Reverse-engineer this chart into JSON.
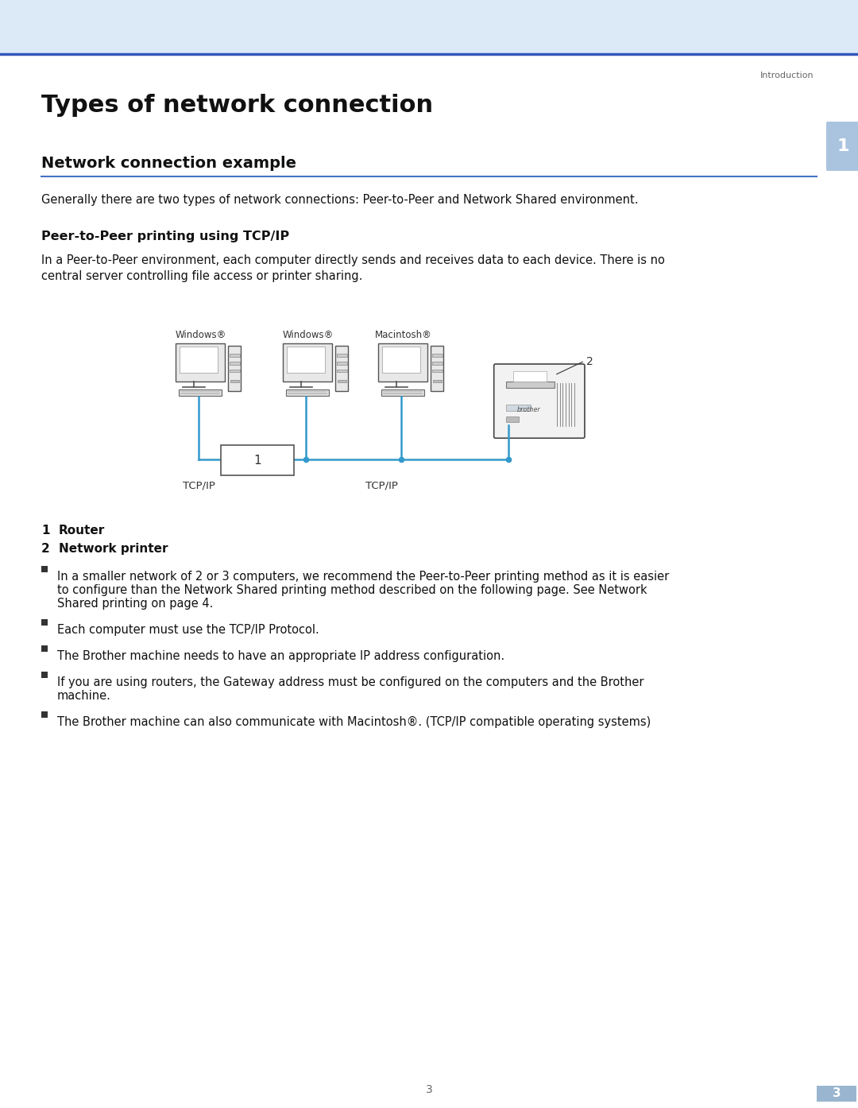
{
  "bg_color": "#ffffff",
  "header_bg_color": "#dce9f7",
  "header_line_color": "#3355bb",
  "page_title": "Types of network connection",
  "section_title": "Network connection example",
  "section_line_color": "#4472c4",
  "subsection_title": "Peer-to-Peer printing using TCP/IP",
  "intro_text": "Generally there are two types of network connections: Peer-to-Peer and Network Shared environment.",
  "body_text_line1": "In a Peer-to-Peer environment, each computer directly sends and receives data to each device. There is no",
  "body_text_line2": "central server controlling file access or printer sharing.",
  "header_text": "Introduction",
  "page_number": "3",
  "tab_bg_color": "#aac4e0",
  "tab_text": "1",
  "legend1_label": "Router",
  "legend2_label": "Network printer",
  "computer_labels": [
    "Windows®",
    "Windows®",
    "Macintosh®"
  ],
  "tcpip_label1": "TCP/IP",
  "tcpip_label2": "TCP/IP",
  "diagram_label1": "1",
  "diagram_label2": "2",
  "line_color": "#3399cc",
  "bullet1_line1": "In a smaller network of 2 or 3 computers, we recommend the Peer-to-Peer printing method as it is easier",
  "bullet1_line2": "to configure than the Network Shared printing method described on the following page. See ⁠Network",
  "bullet1_line3": "Shared printing⁠ on page 4.",
  "bullet2": "Each computer must use the TCP/IP Protocol.",
  "bullet3": "The Brother machine needs to have an appropriate IP address configuration.",
  "bullet4_line1": "If you are using routers, the Gateway address must be configured on the computers and the Brother",
  "bullet4_line2": "machine.",
  "bullet5": "The Brother machine can also communicate with Macintosh®. (TCP/IP compatible operating systems)"
}
